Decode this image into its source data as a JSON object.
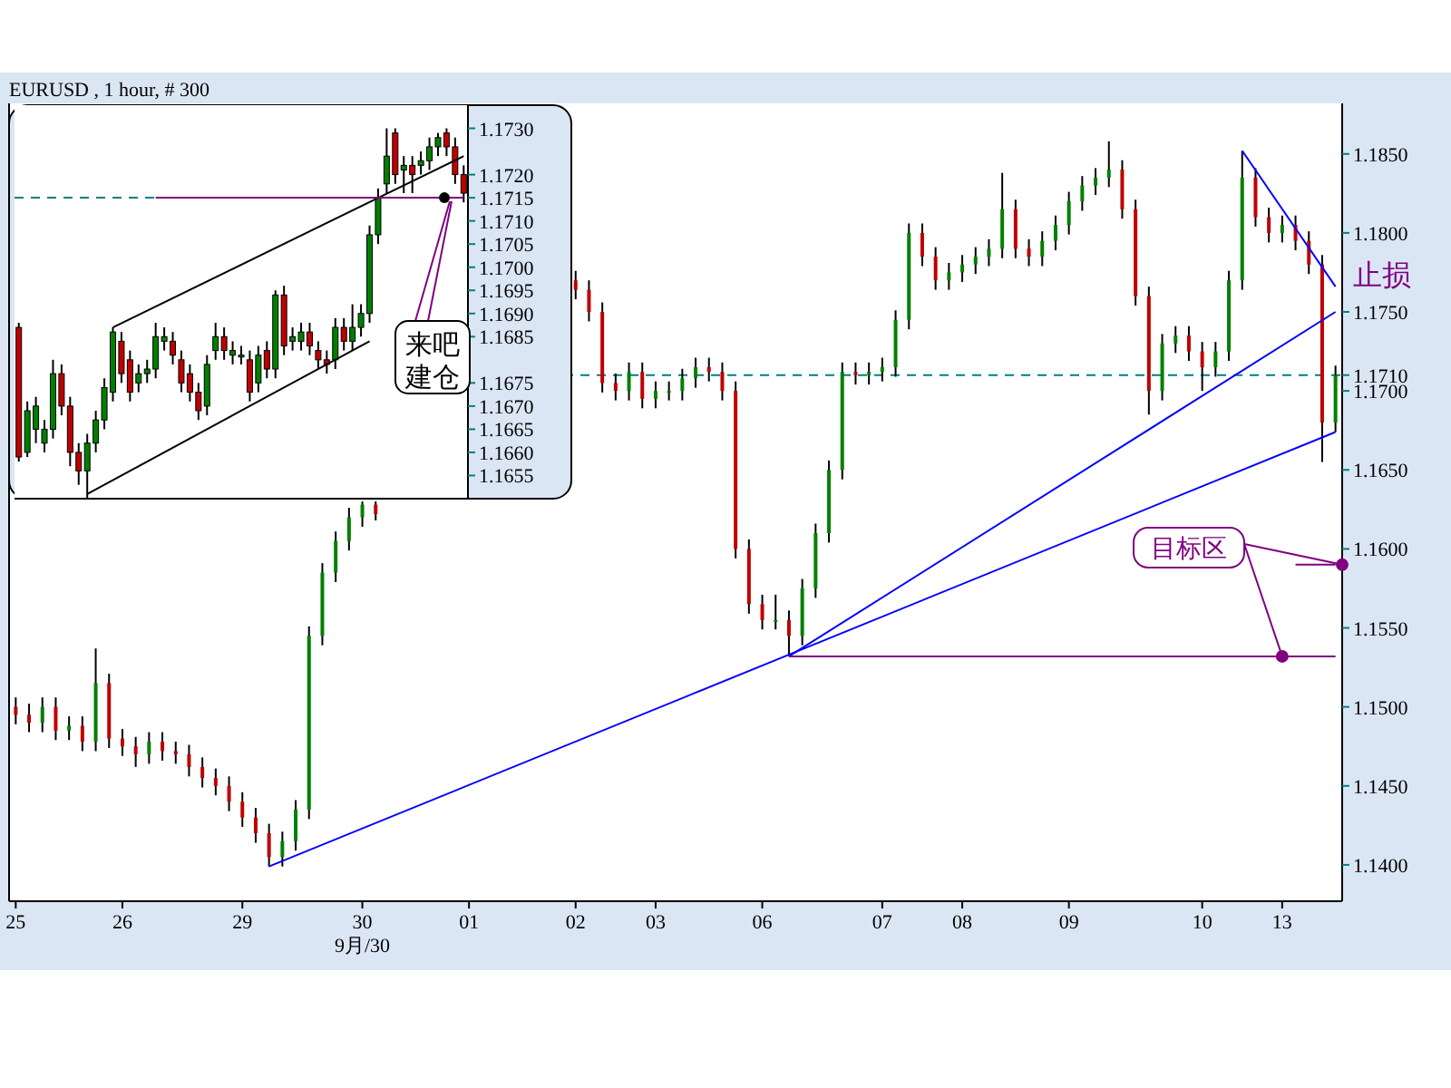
{
  "chart_data": [
    {
      "type": "candlestick",
      "title": "EURUSD , 1 hour, # 300",
      "categories": [
        "25",
        null,
        null,
        null,
        null,
        null,
        null,
        null,
        "26",
        null,
        null,
        null,
        null,
        null,
        null,
        null,
        null,
        "29",
        null,
        null,
        null,
        null,
        null,
        null,
        null,
        null,
        "30",
        null,
        null,
        null,
        null,
        null,
        null,
        null,
        "01",
        null,
        null,
        null,
        null,
        null,
        null,
        null,
        "02",
        null,
        null,
        null,
        null,
        null,
        "03",
        null,
        null,
        null,
        null,
        null,
        null,
        null,
        "06",
        null,
        null,
        null,
        null,
        null,
        null,
        null,
        null,
        "07",
        null,
        null,
        null,
        null,
        null,
        "08",
        null,
        null,
        null,
        null,
        null,
        null,
        null,
        "09",
        null,
        null,
        null,
        null,
        null,
        null,
        null,
        null,
        null,
        "10",
        null,
        null,
        null,
        null,
        null,
        "13",
        null,
        null,
        null,
        null
      ],
      "ohlc": [
        [
          1.15,
          1.1506,
          1.1489,
          1.1495
        ],
        [
          1.1495,
          1.1502,
          1.1484,
          1.149
        ],
        [
          1.149,
          1.1506,
          1.1484,
          1.15
        ],
        [
          1.15,
          1.1506,
          1.1479,
          1.1485
        ],
        [
          1.1485,
          1.1494,
          1.1479,
          1.1488
        ],
        [
          1.1488,
          1.1494,
          1.1472,
          1.1478
        ],
        [
          1.1478,
          1.1537,
          1.1472,
          1.1515
        ],
        [
          1.1515,
          1.1521,
          1.1474,
          1.148
        ],
        [
          1.148,
          1.1486,
          1.1469,
          1.1475
        ],
        [
          1.1475,
          1.1481,
          1.1462,
          1.147
        ],
        [
          1.147,
          1.1484,
          1.1464,
          1.1478
        ],
        [
          1.1478,
          1.1484,
          1.1466,
          1.1472
        ],
        [
          1.1472,
          1.1478,
          1.1464,
          1.147
        ],
        [
          1.147,
          1.1476,
          1.1456,
          1.1462
        ],
        [
          1.1462,
          1.1468,
          1.1449,
          1.1455
        ],
        [
          1.1455,
          1.1461,
          1.1444,
          1.145
        ],
        [
          1.145,
          1.1456,
          1.1434,
          1.144
        ],
        [
          1.144,
          1.1446,
          1.1424,
          1.143
        ],
        [
          1.143,
          1.1436,
          1.1414,
          1.142
        ],
        [
          1.142,
          1.1426,
          1.1399,
          1.1405
        ],
        [
          1.1405,
          1.1421,
          1.1399,
          1.1415
        ],
        [
          1.1415,
          1.1441,
          1.1409,
          1.1435
        ],
        [
          1.1435,
          1.1551,
          1.1429,
          1.1545
        ],
        [
          1.1545,
          1.1591,
          1.1539,
          1.1585
        ],
        [
          1.1585,
          1.1611,
          1.1579,
          1.1605
        ],
        [
          1.1605,
          1.1626,
          1.1599,
          1.162
        ],
        [
          1.162,
          1.163,
          1.1614,
          1.1628
        ],
        [
          1.1628,
          1.163,
          1.1618,
          1.1622
        ],
        null,
        null,
        null,
        null,
        null,
        null,
        null,
        null,
        null,
        null,
        null,
        null,
        null,
        null,
        [
          1.177,
          1.1776,
          1.1758,
          1.1764
        ],
        [
          1.1764,
          1.177,
          1.1744,
          1.175
        ],
        [
          1.175,
          1.1756,
          1.1699,
          1.1705
        ],
        [
          1.1705,
          1.1711,
          1.1694,
          1.17
        ],
        [
          1.17,
          1.1718,
          1.1694,
          1.1712
        ],
        [
          1.1712,
          1.1718,
          1.1689,
          1.1695
        ],
        [
          1.1695,
          1.1706,
          1.1689,
          1.17
        ],
        [
          1.17,
          1.1706,
          1.1694,
          1.17
        ],
        [
          1.17,
          1.1714,
          1.1694,
          1.1708
        ],
        [
          1.1708,
          1.1721,
          1.1702,
          1.1715
        ],
        [
          1.1715,
          1.1721,
          1.1706,
          1.1712
        ],
        [
          1.1712,
          1.1718,
          1.1694,
          1.17
        ],
        [
          1.17,
          1.1706,
          1.1594,
          1.16
        ],
        [
          1.16,
          1.1606,
          1.1559,
          1.1565
        ],
        [
          1.1565,
          1.1571,
          1.1549,
          1.1555
        ],
        [
          1.1555,
          1.1571,
          1.1549,
          1.1555
        ],
        [
          1.1555,
          1.1561,
          1.1532,
          1.1545
        ],
        [
          1.1545,
          1.1581,
          1.1539,
          1.1575
        ],
        [
          1.1575,
          1.1616,
          1.1569,
          1.161
        ],
        [
          1.161,
          1.1656,
          1.1604,
          1.165
        ],
        [
          1.165,
          1.1718,
          1.1644,
          1.1712
        ],
        [
          1.1712,
          1.1718,
          1.1704,
          1.171
        ],
        [
          1.171,
          1.1718,
          1.1704,
          1.1712
        ],
        [
          1.1712,
          1.1721,
          1.1706,
          1.1715
        ],
        [
          1.1715,
          1.1751,
          1.1709,
          1.1745
        ],
        [
          1.1745,
          1.1806,
          1.1739,
          1.18
        ],
        [
          1.18,
          1.1806,
          1.1779,
          1.1785
        ],
        [
          1.1785,
          1.1791,
          1.1764,
          1.177
        ],
        [
          1.177,
          1.1781,
          1.1764,
          1.1775
        ],
        [
          1.1775,
          1.1786,
          1.1769,
          1.178
        ],
        [
          1.178,
          1.1791,
          1.1774,
          1.1785
        ],
        [
          1.1785,
          1.1796,
          1.1779,
          1.179
        ],
        [
          1.179,
          1.1838,
          1.1784,
          1.1815
        ],
        [
          1.1815,
          1.1821,
          1.1784,
          1.179
        ],
        [
          1.179,
          1.1796,
          1.1779,
          1.1785
        ],
        [
          1.1785,
          1.1801,
          1.1779,
          1.1795
        ],
        [
          1.1795,
          1.1811,
          1.1789,
          1.1805
        ],
        [
          1.1805,
          1.1826,
          1.1799,
          1.182
        ],
        [
          1.182,
          1.1836,
          1.1814,
          1.183
        ],
        [
          1.183,
          1.1841,
          1.1824,
          1.1835
        ],
        [
          1.1835,
          1.1858,
          1.1829,
          1.184
        ],
        [
          1.184,
          1.1846,
          1.1809,
          1.1815
        ],
        [
          1.1815,
          1.1821,
          1.1754,
          1.176
        ],
        [
          1.176,
          1.1766,
          1.1685,
          1.17
        ],
        [
          1.17,
          1.1736,
          1.1694,
          1.173
        ],
        [
          1.173,
          1.1741,
          1.1724,
          1.1735
        ],
        [
          1.1735,
          1.1741,
          1.1719,
          1.1725
        ],
        [
          1.1725,
          1.1731,
          1.17,
          1.1715
        ],
        [
          1.1715,
          1.1731,
          1.1709,
          1.1725
        ],
        [
          1.1725,
          1.1776,
          1.1719,
          1.177
        ],
        [
          1.177,
          1.1852,
          1.1764,
          1.1835
        ],
        [
          1.1835,
          1.1841,
          1.1804,
          1.181
        ],
        [
          1.181,
          1.1816,
          1.1794,
          1.18
        ],
        [
          1.18,
          1.1811,
          1.1794,
          1.1805
        ],
        [
          1.1805,
          1.1811,
          1.1789,
          1.1795
        ],
        [
          1.1795,
          1.1801,
          1.1774,
          1.178
        ],
        [
          1.178,
          1.1786,
          1.1655,
          1.168
        ],
        [
          1.168,
          1.1716,
          1.1674,
          1.171
        ]
      ],
      "series": [
        {
          "type": "line",
          "color": "#0000ff",
          "values": [
            null,
            null,
            null,
            null,
            null,
            null,
            null,
            null,
            null,
            null,
            null,
            null,
            null,
            null,
            null,
            null,
            null,
            null,
            null,
            1.1399,
            null,
            null,
            null,
            null,
            null,
            null,
            null,
            null,
            null,
            null,
            null,
            null,
            null,
            null,
            null,
            null,
            null,
            null,
            null,
            null,
            null,
            null,
            null,
            null,
            null,
            null,
            null,
            null,
            null,
            null,
            null,
            null,
            null,
            null,
            null,
            null,
            null,
            null,
            null,
            null,
            null,
            null,
            null,
            null,
            null,
            null,
            null,
            null,
            null,
            null,
            null,
            null,
            null,
            null,
            null,
            null,
            null,
            null,
            null,
            null,
            null,
            null,
            null,
            null,
            null,
            null,
            null,
            null,
            null,
            null,
            null,
            null,
            null,
            null,
            null,
            null,
            null,
            null,
            null,
            1.1674
          ]
        },
        {
          "type": "line",
          "color": "#0000ff",
          "values": [
            null,
            null,
            null,
            null,
            null,
            null,
            null,
            null,
            null,
            null,
            null,
            null,
            null,
            null,
            null,
            null,
            null,
            null,
            null,
            null,
            null,
            null,
            null,
            null,
            null,
            null,
            null,
            null,
            null,
            null,
            null,
            null,
            null,
            null,
            null,
            null,
            null,
            null,
            null,
            null,
            null,
            null,
            null,
            null,
            null,
            null,
            null,
            null,
            null,
            null,
            null,
            null,
            null,
            null,
            null,
            null,
            null,
            null,
            1.1532,
            null,
            null,
            null,
            null,
            null,
            null,
            null,
            null,
            null,
            null,
            null,
            null,
            null,
            null,
            null,
            null,
            null,
            null,
            null,
            null,
            null,
            null,
            null,
            null,
            null,
            null,
            null,
            null,
            null,
            null,
            null,
            null,
            null,
            null,
            null,
            null,
            null,
            null,
            null,
            null,
            1.175
          ]
        },
        {
          "type": "line",
          "color": "#0000ff",
          "values": [
            null,
            null,
            null,
            null,
            null,
            null,
            null,
            null,
            null,
            null,
            null,
            null,
            null,
            null,
            null,
            null,
            null,
            null,
            null,
            null,
            null,
            null,
            null,
            null,
            null,
            null,
            null,
            null,
            null,
            null,
            null,
            null,
            null,
            null,
            null,
            null,
            null,
            null,
            null,
            null,
            null,
            null,
            null,
            null,
            null,
            null,
            null,
            null,
            null,
            null,
            null,
            null,
            null,
            null,
            null,
            null,
            null,
            null,
            null,
            null,
            null,
            null,
            null,
            null,
            null,
            null,
            null,
            null,
            null,
            null,
            null,
            null,
            null,
            null,
            null,
            null,
            null,
            null,
            null,
            null,
            null,
            null,
            null,
            null,
            null,
            null,
            null,
            null,
            null,
            null,
            null,
            null,
            1.1852,
            null,
            null,
            null,
            null,
            null,
            null,
            1.1766
          ]
        },
        {
          "type": "line",
          "color": "#800080",
          "values": [
            null,
            null,
            null,
            null,
            null,
            null,
            null,
            null,
            null,
            null,
            null,
            null,
            null,
            null,
            null,
            null,
            null,
            null,
            null,
            null,
            null,
            null,
            null,
            null,
            null,
            null,
            null,
            null,
            null,
            null,
            null,
            null,
            null,
            null,
            null,
            null,
            null,
            null,
            null,
            null,
            null,
            null,
            null,
            null,
            null,
            null,
            null,
            null,
            null,
            null,
            null,
            null,
            null,
            null,
            null,
            null,
            null,
            null,
            1.1532,
            null,
            null,
            null,
            null,
            null,
            null,
            null,
            null,
            null,
            null,
            null,
            null,
            null,
            null,
            null,
            null,
            null,
            null,
            null,
            null,
            null,
            null,
            null,
            null,
            null,
            null,
            null,
            null,
            null,
            null,
            null,
            null,
            null,
            null,
            null,
            null,
            null,
            null,
            null,
            null,
            1.1532
          ]
        },
        {
          "type": "line",
          "color": "#800080",
          "values": [
            null,
            null,
            null,
            null,
            null,
            null,
            null,
            null,
            null,
            null,
            null,
            null,
            null,
            null,
            null,
            null,
            null,
            null,
            null,
            null,
            null,
            null,
            null,
            null,
            null,
            null,
            null,
            null,
            null,
            null,
            null,
            null,
            null,
            null,
            null,
            null,
            null,
            null,
            null,
            null,
            null,
            null,
            null,
            null,
            null,
            null,
            null,
            null,
            null,
            null,
            null,
            null,
            null,
            null,
            null,
            null,
            null,
            null,
            null,
            null,
            null,
            null,
            null,
            null,
            null,
            null,
            null,
            null,
            null,
            null,
            null,
            null,
            null,
            null,
            null,
            null,
            null,
            null,
            null,
            null,
            null,
            null,
            null,
            null,
            null,
            null,
            null,
            null,
            null,
            null,
            null,
            null,
            null,
            null,
            null,
            null,
            1.159,
            null,
            null,
            1.159
          ]
        }
      ],
      "ref_lines": [
        {
          "axis": "y",
          "value": 1.171,
          "color": "#008080",
          "line_style": "dashed"
        }
      ],
      "ylim": [
        1.1377,
        1.1882
      ],
      "yticks": [
        {
          "value": 1.14,
          "label": "1.1400"
        },
        {
          "value": 1.145,
          "label": "1.1450"
        },
        {
          "value": 1.15,
          "label": "1.1500"
        },
        {
          "value": 1.155,
          "label": "1.1550"
        },
        {
          "value": 1.16,
          "label": "1.1600"
        },
        {
          "value": 1.165,
          "label": "1.1650"
        },
        {
          "value": 1.17,
          "label": "1.1700"
        },
        {
          "value": 1.171,
          "label": "1.1710"
        },
        {
          "value": 1.175,
          "label": "1.1750"
        },
        {
          "value": 1.18,
          "label": "1.1800"
        },
        {
          "value": 1.185,
          "label": "1.1850"
        }
      ],
      "annotations": [
        "止损",
        {
          "text": "目标区",
          "x": "13",
          "y": 1.1532
        },
        "9月/30"
      ]
    },
    {
      "type": "candlestick",
      "categories": [
        null,
        null,
        null,
        null,
        null,
        null,
        null,
        null,
        null,
        null,
        null,
        null,
        null,
        null,
        null,
        null,
        null,
        null,
        null,
        null,
        null,
        null,
        null,
        null,
        null,
        null,
        null,
        null,
        null,
        null,
        null,
        null,
        null,
        null,
        null,
        null,
        null,
        null,
        null,
        null,
        null,
        null,
        null,
        null,
        null,
        null,
        null,
        null,
        null,
        null,
        null,
        null,
        null
      ],
      "ohlc": [
        [
          1.1687,
          1.1688,
          1.1658,
          1.1659
        ],
        [
          1.166,
          1.1671,
          1.1659,
          1.1669
        ],
        [
          1.1665,
          1.1672,
          1.1662,
          1.167
        ],
        [
          1.1662,
          1.1667,
          1.166,
          1.1665
        ],
        [
          1.1665,
          1.168,
          1.1663,
          1.1677
        ],
        [
          1.1677,
          1.1679,
          1.1668,
          1.167
        ],
        [
          1.167,
          1.1672,
          1.1657,
          1.166
        ],
        [
          1.166,
          1.1662,
          1.1653,
          1.1656
        ],
        [
          1.1656,
          1.1664,
          1.165,
          1.1662
        ],
        [
          1.1662,
          1.1669,
          1.166,
          1.1667
        ],
        [
          1.1667,
          1.1676,
          1.1665,
          1.1674
        ],
        [
          1.1673,
          1.1687,
          1.1671,
          1.1686
        ],
        [
          1.1684,
          1.1686,
          1.1675,
          1.1677
        ],
        [
          1.168,
          1.1682,
          1.1671,
          1.1673
        ],
        [
          1.1675,
          1.1679,
          1.1673,
          1.1677
        ],
        [
          1.1677,
          1.168,
          1.1675,
          1.1678
        ],
        [
          1.1678,
          1.1688,
          1.1676,
          1.1685
        ],
        [
          1.1684,
          1.1687,
          1.1682,
          1.1685
        ],
        [
          1.1684,
          1.1686,
          1.1679,
          1.1681
        ],
        [
          1.168,
          1.1682,
          1.1673,
          1.1675
        ],
        [
          1.1677,
          1.1679,
          1.1671,
          1.1673
        ],
        [
          1.1673,
          1.1675,
          1.1667,
          1.1669
        ],
        [
          1.167,
          1.1681,
          1.1668,
          1.1679
        ],
        [
          1.1682,
          1.1688,
          1.168,
          1.1685
        ],
        [
          1.1685,
          1.1687,
          1.168,
          1.1682
        ],
        [
          1.1681,
          1.1684,
          1.1679,
          1.1682
        ],
        [
          1.1681,
          1.1683,
          1.1679,
          1.1681
        ],
        [
          1.168,
          1.1682,
          1.1671,
          1.1673
        ],
        [
          1.1675,
          1.1683,
          1.1673,
          1.1681
        ],
        [
          1.1682,
          1.1684,
          1.1676,
          1.1678
        ],
        [
          1.1678,
          1.1695,
          1.1676,
          1.1694
        ],
        [
          1.1694,
          1.1696,
          1.1681,
          1.1683
        ],
        [
          1.1684,
          1.1687,
          1.1682,
          1.1685
        ],
        [
          1.1684,
          1.1688,
          1.1682,
          1.1686
        ],
        [
          1.1686,
          1.1688,
          1.1681,
          1.1683
        ],
        [
          1.1682,
          1.1684,
          1.1678,
          1.168
        ],
        [
          1.168,
          1.1682,
          1.1677,
          1.1679
        ],
        [
          1.168,
          1.1689,
          1.1678,
          1.1687
        ],
        [
          1.1687,
          1.1689,
          1.1682,
          1.1684
        ],
        [
          1.1684,
          1.1692,
          1.1682,
          1.1687
        ],
        [
          1.1687,
          1.1692,
          1.1685,
          1.169
        ],
        [
          1.169,
          1.1709,
          1.1688,
          1.1707
        ],
        [
          1.1707,
          1.1717,
          1.1705,
          1.1715
        ],
        [
          1.1718,
          1.173,
          1.1716,
          1.1724
        ],
        [
          1.1729,
          1.173,
          1.1718,
          1.172
        ],
        [
          1.1721,
          1.1724,
          1.1716,
          1.1722
        ],
        [
          1.1722,
          1.1724,
          1.1716,
          1.172
        ],
        [
          1.1722,
          1.1725,
          1.172,
          1.1723
        ],
        [
          1.1723,
          1.1728,
          1.1721,
          1.1726
        ],
        [
          1.1726,
          1.1729,
          1.1724,
          1.1728
        ],
        [
          1.1729,
          1.173,
          1.1724,
          1.1726
        ],
        [
          1.1726,
          1.1728,
          1.1718,
          1.172
        ],
        [
          1.172,
          1.1722,
          1.1714,
          1.1716
        ]
      ],
      "series": [
        {
          "type": "line",
          "color": "#000000",
          "values": [
            null,
            null,
            null,
            null,
            null,
            null,
            null,
            null,
            null,
            null,
            null,
            1.1687,
            null,
            null,
            null,
            null,
            null,
            null,
            null,
            null,
            null,
            null,
            null,
            null,
            null,
            null,
            null,
            null,
            null,
            null,
            null,
            null,
            null,
            null,
            null,
            null,
            null,
            null,
            null,
            null,
            null,
            null,
            null,
            null,
            null,
            null,
            null,
            null,
            null,
            null,
            null,
            null,
            1.1724
          ]
        },
        {
          "type": "line",
          "color": "#000000",
          "values": [
            null,
            null,
            null,
            null,
            null,
            null,
            null,
            null,
            1.1651,
            null,
            null,
            null,
            null,
            null,
            null,
            null,
            null,
            null,
            null,
            null,
            null,
            null,
            null,
            null,
            null,
            null,
            null,
            null,
            null,
            null,
            null,
            null,
            null,
            null,
            null,
            null,
            null,
            null,
            null,
            null,
            null,
            1.1684,
            null,
            null,
            null,
            null,
            null,
            null,
            null,
            null,
            null,
            null,
            null
          ]
        },
        {
          "type": "line",
          "color": "#800080",
          "values": [
            null,
            null,
            null,
            null,
            null,
            null,
            null,
            null,
            null,
            null,
            null,
            null,
            null,
            null,
            null,
            null,
            1.1715,
            null,
            null,
            null,
            null,
            null,
            null,
            null,
            null,
            null,
            null,
            null,
            null,
            null,
            null,
            null,
            null,
            null,
            null,
            null,
            null,
            null,
            null,
            null,
            null,
            null,
            null,
            null,
            null,
            null,
            null,
            null,
            null,
            null,
            null,
            null,
            1.1715
          ]
        }
      ],
      "ref_lines": [
        {
          "axis": "y",
          "value": 1.1715,
          "color": "#008080",
          "line_style": "dashed"
        }
      ],
      "ylim": [
        1.165,
        1.1735
      ],
      "yticks": [
        {
          "value": 1.1655,
          "label": "1.1655"
        },
        {
          "value": 1.166,
          "label": "1.1660"
        },
        {
          "value": 1.1665,
          "label": "1.1665"
        },
        {
          "value": 1.167,
          "label": "1.1670"
        },
        {
          "value": 1.1675,
          "label": "1.1675"
        },
        {
          "value": 1.1685,
          "label": "1.1685"
        },
        {
          "value": 1.169,
          "label": "1.1690"
        },
        {
          "value": 1.1695,
          "label": "1.1695"
        },
        {
          "value": 1.17,
          "label": "1.1700"
        },
        {
          "value": 1.1705,
          "label": "1.1705"
        },
        {
          "value": 1.171,
          "label": "1.1710"
        },
        {
          "value": 1.1715,
          "label": "1.1715"
        },
        {
          "value": 1.172,
          "label": "1.1720"
        },
        {
          "value": 1.173,
          "label": "1.1730"
        }
      ],
      "annotations": [
        "来吧建仓"
      ]
    }
  ]
}
